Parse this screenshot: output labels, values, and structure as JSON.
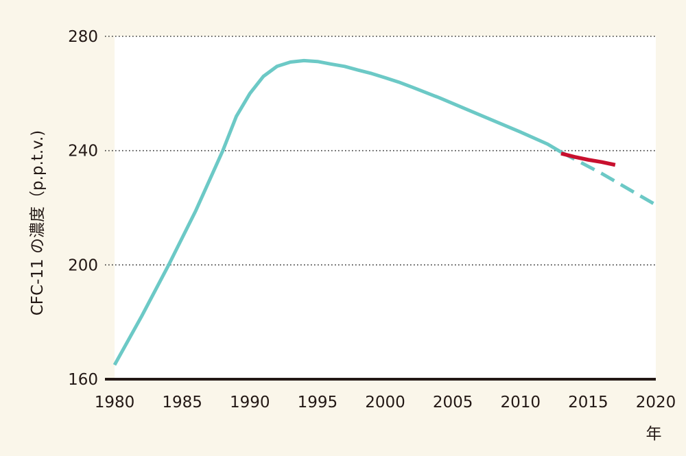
{
  "chart_data": {
    "type": "line",
    "title": "",
    "xlabel": "年",
    "ylabel": "CFC-11 の濃度（p.p.t.v.)",
    "xlim": [
      1980,
      2020
    ],
    "ylim": [
      160,
      280
    ],
    "x_ticks": [
      "1980",
      "1985",
      "1990",
      "1995",
      "2000",
      "2005",
      "2010",
      "2015",
      "2020"
    ],
    "y_ticks": [
      "160",
      "200",
      "240",
      "280"
    ],
    "grid": "horizontal dotted",
    "series": [
      {
        "color": "#6cc9c6",
        "style": "solid",
        "x": [
          1980,
          1982,
          1984,
          1986,
          1988,
          1989,
          1990,
          1991,
          1992,
          1993,
          1994,
          1995,
          1996,
          1997,
          1998,
          1999,
          2000,
          2001,
          2002,
          2004,
          2006,
          2008,
          2010,
          2012,
          2013
        ],
        "y": [
          165,
          182,
          200,
          219,
          240,
          252,
          260,
          266,
          269.5,
          271,
          271.5,
          271.2,
          270.3,
          269.5,
          268.2,
          267,
          265.5,
          264,
          262.2,
          258.5,
          254.5,
          250.5,
          246.5,
          242.3,
          239.5
        ]
      },
      {
        "color": "#6cc9c6",
        "style": "dashed",
        "x": [
          2013,
          2016,
          2020
        ],
        "y": [
          239.5,
          232,
          221
        ]
      },
      {
        "color": "#c8102e",
        "style": "solid",
        "x": [
          2013,
          2014,
          2015,
          2016,
          2017
        ],
        "y": [
          239,
          237.8,
          236.8,
          236,
          235
        ]
      }
    ]
  }
}
